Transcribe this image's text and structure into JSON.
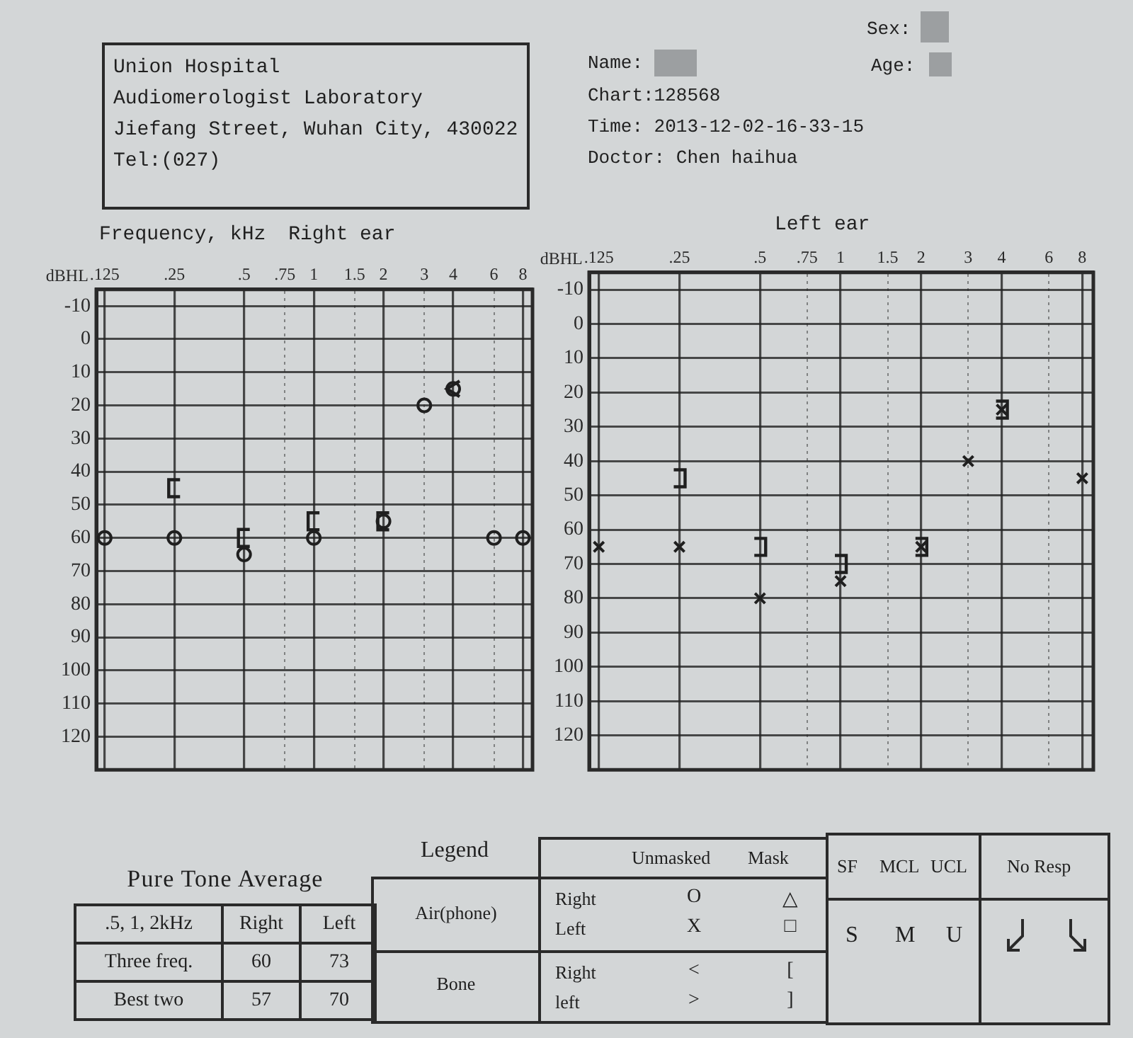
{
  "chart_data": [
    {
      "type": "scatter",
      "title": "Right ear",
      "xlabel": "Frequency, kHz",
      "ylabel": "dBHL",
      "log": "x",
      "grid": true,
      "xlim": [
        0.115,
        8.8
      ],
      "xticks": [
        {
          "value": 0.125,
          "label": ".125"
        },
        {
          "value": 0.25,
          "label": ".25"
        },
        {
          "value": 0.5,
          "label": ".5"
        },
        {
          "value": 0.75,
          "label": ".75"
        },
        1,
        1.5,
        2,
        3,
        4,
        6,
        8
      ],
      "ylim": [
        130,
        -15
      ],
      "yticks": [
        -10,
        0,
        10,
        20,
        30,
        40,
        50,
        60,
        70,
        80,
        90,
        100,
        110,
        120
      ],
      "series": [
        {
          "color": "#1f1f1f",
          "marker": "circle",
          "x": [
            0.125,
            0.25,
            0.5,
            1,
            2,
            3,
            4,
            6,
            8
          ],
          "values": [
            60,
            60,
            65,
            60,
            55,
            20,
            15,
            60,
            60
          ]
        },
        {
          "color": "#1f1f1f",
          "x": [
            0.25,
            0.5,
            1,
            2
          ],
          "values": [
            45,
            60,
            55,
            55
          ]
        },
        {
          "color": "#1f1f1f",
          "x": [
            4
          ],
          "values": [
            15
          ]
        }
      ]
    },
    {
      "type": "scatter",
      "title": "Left ear",
      "ylabel": "dBHL",
      "log": "x",
      "grid": true,
      "xlim": [
        0.115,
        8.8
      ],
      "xticks": [
        {
          "value": 0.125,
          "label": ".125"
        },
        {
          "value": 0.25,
          "label": ".25"
        },
        {
          "value": 0.5,
          "label": ".5"
        },
        {
          "value": 0.75,
          "label": ".75"
        },
        1,
        1.5,
        2,
        3,
        4,
        6,
        8
      ],
      "ylim": [
        130,
        -15
      ],
      "yticks": [
        -10,
        0,
        10,
        20,
        30,
        40,
        50,
        60,
        70,
        80,
        90,
        100,
        110,
        120
      ],
      "series": [
        {
          "color": "#1f1f1f",
          "marker": "cross",
          "x": [
            0.125,
            0.25,
            0.5,
            1,
            2,
            3,
            4,
            8
          ],
          "values": [
            65,
            65,
            80,
            75,
            65,
            40,
            25,
            45
          ]
        },
        {
          "color": "#1f1f1f",
          "x": [
            0.25,
            0.5,
            1,
            2,
            4
          ],
          "values": [
            45,
            65,
            70,
            65,
            25
          ]
        }
      ]
    },
    {
      "type": "other",
      "annotations": [
        "Union Hospital",
        "Audiomerologist Laboratory",
        "Jiefang Street, Wuhan City, 430022",
        "Tel:(027)",
        "Name:",
        "Sex:",
        "Age:",
        "Chart:128568",
        "Time: 2013-12-02-16-33-15",
        "Doctor: Chen haihua"
      ]
    },
    {
      "type": "other",
      "title": "Pure Tone Average",
      "subtitle": ".5, 1, 2kHz",
      "categories": [
        "Three freq.",
        "Best two"
      ],
      "series": [
        {
          "name": "Right",
          "values": [
            60,
            57
          ]
        },
        {
          "name": "Left",
          "values": [
            73,
            70
          ]
        }
      ],
      "data_labels": true
    },
    {
      "type": "other",
      "title": "Legend",
      "annotations": [
        "Unmasked",
        "Mask",
        "Air(phone)",
        "Right",
        "O",
        "△",
        "Left",
        "X",
        "□",
        "Bone",
        "Right",
        "<",
        "[",
        "left",
        ">",
        "]",
        "SF",
        "MCL",
        "UCL",
        "No Resp",
        "S",
        "M",
        "U"
      ]
    }
  ]
}
